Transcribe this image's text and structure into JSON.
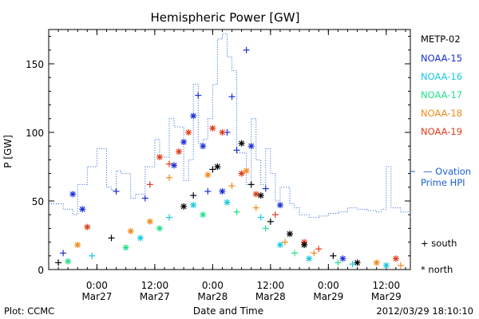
{
  "chart_data": {
    "type": "scatter",
    "title": "Hemispheric Power [GW]",
    "ylabel": "P [GW]",
    "xlabel": "Date and Time",
    "ylim": [
      0,
      175
    ],
    "yticks": [
      0,
      50,
      100,
      150
    ],
    "xlim": [
      "2012-03-26T14:00",
      "2012-03-29T17:00"
    ],
    "xticks": [
      {
        "t": "2012-03-27T00:00",
        "line1": "0:00",
        "line2": "Mar27"
      },
      {
        "t": "2012-03-27T12:00",
        "line1": "12:00",
        "line2": "Mar27"
      },
      {
        "t": "2012-03-28T00:00",
        "line1": "0:00",
        "line2": "Mar28"
      },
      {
        "t": "2012-03-28T12:00",
        "line1": "12:00",
        "line2": "Mar28"
      },
      {
        "t": "2012-03-29T00:00",
        "line1": "0:00",
        "line2": "Mar29"
      },
      {
        "t": "2012-03-29T12:00",
        "line1": "12:00",
        "line2": "Mar29"
      }
    ],
    "legend": {
      "satellites": [
        {
          "name": "METP-02",
          "color": "#000000"
        },
        {
          "name": "NOAA-15",
          "color": "#1a2fd6"
        },
        {
          "name": "NOAA-16",
          "color": "#18c8e0"
        },
        {
          "name": "NOAA-17",
          "color": "#22e08a"
        },
        {
          "name": "NOAA-18",
          "color": "#f08a1a"
        },
        {
          "name": "NOAA-19",
          "color": "#e03a1a"
        }
      ],
      "ovation_line1": "— Ovation",
      "ovation_line2": "Prime HPI",
      "ovation_color": "#1a5fd6",
      "marker_south": "+ south",
      "marker_north": "* north"
    },
    "ovation_series": [
      [
        "2012-03-26T14:00",
        48
      ],
      [
        "2012-03-26T17:00",
        44
      ],
      [
        "2012-03-26T19:00",
        40
      ],
      [
        "2012-03-26T20:00",
        62
      ],
      [
        "2012-03-26T22:00",
        75
      ],
      [
        "2012-03-27T00:00",
        88
      ],
      [
        "2012-03-27T02:00",
        60
      ],
      [
        "2012-03-27T03:00",
        58
      ],
      [
        "2012-03-27T04:00",
        72
      ],
      [
        "2012-03-27T05:00",
        70
      ],
      [
        "2012-03-27T07:00",
        52
      ],
      [
        "2012-03-27T08:00",
        55
      ],
      [
        "2012-03-27T10:00",
        75
      ],
      [
        "2012-03-27T12:00",
        95
      ],
      [
        "2012-03-27T13:00",
        82
      ],
      [
        "2012-03-27T15:00",
        110
      ],
      [
        "2012-03-27T16:00",
        104
      ],
      [
        "2012-03-27T18:00",
        65
      ],
      [
        "2012-03-27T19:00",
        80
      ],
      [
        "2012-03-27T20:00",
        135
      ],
      [
        "2012-03-27T21:00",
        92
      ],
      [
        "2012-03-27T22:00",
        95
      ],
      [
        "2012-03-27T23:00",
        110
      ],
      [
        "2012-03-28T00:00",
        135
      ],
      [
        "2012-03-28T01:00",
        168
      ],
      [
        "2012-03-28T02:00",
        172
      ],
      [
        "2012-03-28T03:00",
        155
      ],
      [
        "2012-03-28T04:00",
        145
      ],
      [
        "2012-03-28T05:00",
        85
      ],
      [
        "2012-03-28T07:00",
        62
      ],
      [
        "2012-03-28T08:00",
        110
      ],
      [
        "2012-03-28T09:00",
        80
      ],
      [
        "2012-03-28T10:00",
        62
      ],
      [
        "2012-03-28T11:00",
        88
      ],
      [
        "2012-03-28T12:00",
        70
      ],
      [
        "2012-03-28T13:00",
        50
      ],
      [
        "2012-03-28T14:00",
        60
      ],
      [
        "2012-03-28T16:00",
        48
      ],
      [
        "2012-03-28T17:00",
        45
      ],
      [
        "2012-03-28T18:00",
        40
      ],
      [
        "2012-03-28T20:00",
        38
      ],
      [
        "2012-03-28T22:00",
        39
      ],
      [
        "2012-03-29T00:00",
        41
      ],
      [
        "2012-03-29T02:00",
        42
      ],
      [
        "2012-03-29T04:00",
        45
      ],
      [
        "2012-03-29T06:00",
        44
      ],
      [
        "2012-03-29T08:00",
        43
      ],
      [
        "2012-03-29T10:00",
        42
      ],
      [
        "2012-03-29T11:00",
        44
      ],
      [
        "2012-03-29T12:00",
        75
      ],
      [
        "2012-03-29T13:00",
        45
      ],
      [
        "2012-03-29T15:00",
        42
      ],
      [
        "2012-03-29T17:00",
        38
      ]
    ],
    "points": [
      [
        "NOAA-15",
        "north",
        "2012-03-27T20:00",
        112
      ],
      [
        "NOAA-15",
        "south",
        "2012-03-27T21:00",
        127
      ],
      [
        "NOAA-15",
        "north",
        "2012-03-27T18:00",
        93
      ],
      [
        "NOAA-15",
        "south",
        "2012-03-28T03:00",
        100
      ],
      [
        "NOAA-15",
        "north",
        "2012-03-27T22:00",
        90
      ],
      [
        "NOAA-15",
        "south",
        "2012-03-28T07:00",
        160
      ],
      [
        "NOAA-15",
        "south",
        "2012-03-28T04:00",
        126
      ],
      [
        "NOAA-15",
        "north",
        "2012-03-28T08:00",
        90
      ],
      [
        "NOAA-15",
        "south",
        "2012-03-28T05:00",
        87
      ],
      [
        "NOAA-15",
        "north",
        "2012-03-27T16:00",
        76
      ],
      [
        "NOAA-15",
        "south",
        "2012-03-27T10:00",
        52
      ],
      [
        "NOAA-15",
        "north",
        "2012-03-26T19:00",
        55
      ],
      [
        "NOAA-15",
        "south",
        "2012-03-27T04:00",
        57
      ],
      [
        "NOAA-15",
        "north",
        "2012-03-26T21:00",
        44
      ],
      [
        "NOAA-15",
        "south",
        "2012-03-28T11:00",
        59
      ],
      [
        "NOAA-15",
        "north",
        "2012-03-28T14:00",
        47
      ],
      [
        "NOAA-15",
        "south",
        "2012-03-27T23:00",
        57
      ],
      [
        "NOAA-15",
        "north",
        "2012-03-28T02:00",
        57
      ],
      [
        "NOAA-15",
        "south",
        "2012-03-26T17:00",
        12
      ],
      [
        "NOAA-15",
        "north",
        "2012-03-29T03:00",
        8
      ],
      [
        "NOAA-19",
        "north",
        "2012-03-27T19:00",
        100
      ],
      [
        "NOAA-19",
        "north",
        "2012-03-27T17:00",
        86
      ],
      [
        "NOAA-19",
        "north",
        "2012-03-28T00:00",
        103
      ],
      [
        "NOAA-19",
        "north",
        "2012-03-28T02:00",
        100
      ],
      [
        "NOAA-19",
        "north",
        "2012-03-27T13:00",
        82
      ],
      [
        "NOAA-19",
        "south",
        "2012-03-27T15:00",
        77
      ],
      [
        "NOAA-19",
        "north",
        "2012-03-28T06:00",
        70
      ],
      [
        "NOAA-19",
        "south",
        "2012-03-27T11:00",
        62
      ],
      [
        "NOAA-19",
        "north",
        "2012-03-28T09:00",
        55
      ],
      [
        "NOAA-19",
        "north",
        "2012-03-26T22:00",
        31
      ],
      [
        "NOAA-19",
        "south",
        "2012-03-28T13:00",
        40
      ],
      [
        "NOAA-19",
        "north",
        "2012-03-28T19:00",
        20
      ],
      [
        "NOAA-19",
        "north",
        "2012-03-29T14:00",
        8
      ],
      [
        "NOAA-19",
        "south",
        "2012-03-28T22:00",
        15
      ],
      [
        "METP-02",
        "north",
        "2012-03-28T06:00",
        92
      ],
      [
        "METP-02",
        "south",
        "2012-03-28T00:00",
        73
      ],
      [
        "METP-02",
        "north",
        "2012-03-28T01:00",
        75
      ],
      [
        "METP-02",
        "south",
        "2012-03-28T08:00",
        62
      ],
      [
        "METP-02",
        "north",
        "2012-03-28T10:00",
        54
      ],
      [
        "METP-02",
        "south",
        "2012-03-27T20:00",
        54
      ],
      [
        "METP-02",
        "north",
        "2012-03-27T18:00",
        46
      ],
      [
        "METP-02",
        "south",
        "2012-03-28T12:00",
        35
      ],
      [
        "METP-02",
        "north",
        "2012-03-28T16:00",
        26
      ],
      [
        "METP-02",
        "south",
        "2012-03-27T03:00",
        23
      ],
      [
        "METP-02",
        "north",
        "2012-03-28T19:00",
        18
      ],
      [
        "METP-02",
        "south",
        "2012-03-29T01:00",
        10
      ],
      [
        "METP-02",
        "north",
        "2012-03-29T06:00",
        5
      ],
      [
        "METP-02",
        "south",
        "2012-03-26T16:00",
        5
      ],
      [
        "NOAA-18",
        "north",
        "2012-03-28T07:00",
        72
      ],
      [
        "NOAA-18",
        "south",
        "2012-03-27T15:00",
        67
      ],
      [
        "NOAA-18",
        "north",
        "2012-03-27T23:00",
        69
      ],
      [
        "NOAA-18",
        "south",
        "2012-03-28T04:00",
        61
      ],
      [
        "NOAA-18",
        "north",
        "2012-03-27T11:00",
        35
      ],
      [
        "NOAA-18",
        "south",
        "2012-03-28T09:00",
        45
      ],
      [
        "NOAA-18",
        "north",
        "2012-03-27T07:00",
        28
      ],
      [
        "NOAA-18",
        "south",
        "2012-03-28T15:00",
        20
      ],
      [
        "NOAA-18",
        "north",
        "2012-03-26T20:00",
        18
      ],
      [
        "NOAA-18",
        "south",
        "2012-03-28T21:00",
        12
      ],
      [
        "NOAA-18",
        "north",
        "2012-03-29T10:00",
        5
      ],
      [
        "NOAA-18",
        "south",
        "2012-03-29T15:00",
        3
      ],
      [
        "NOAA-16",
        "north",
        "2012-03-27T20:00",
        47
      ],
      [
        "NOAA-16",
        "north",
        "2012-03-28T03:00",
        49
      ],
      [
        "NOAA-16",
        "south",
        "2012-03-27T15:00",
        38
      ],
      [
        "NOAA-16",
        "north",
        "2012-03-27T09:00",
        23
      ],
      [
        "NOAA-16",
        "south",
        "2012-03-28T10:00",
        38
      ],
      [
        "NOAA-16",
        "north",
        "2012-03-28T14:00",
        18
      ],
      [
        "NOAA-16",
        "south",
        "2012-03-26T23:00",
        10
      ],
      [
        "NOAA-16",
        "north",
        "2012-03-28T20:00",
        8
      ],
      [
        "NOAA-16",
        "south",
        "2012-03-29T05:00",
        4
      ],
      [
        "NOAA-16",
        "north",
        "2012-03-29T12:00",
        3
      ],
      [
        "NOAA-17",
        "north",
        "2012-03-27T22:00",
        40
      ],
      [
        "NOAA-17",
        "south",
        "2012-03-28T05:00",
        42
      ],
      [
        "NOAA-17",
        "north",
        "2012-03-27T13:00",
        30
      ],
      [
        "NOAA-17",
        "south",
        "2012-03-28T11:00",
        30
      ],
      [
        "NOAA-17",
        "north",
        "2012-03-27T06:00",
        16
      ],
      [
        "NOAA-17",
        "south",
        "2012-03-28T17:00",
        12
      ],
      [
        "NOAA-17",
        "north",
        "2012-03-26T18:00",
        6
      ],
      [
        "NOAA-17",
        "south",
        "2012-03-29T02:00",
        5
      ]
    ]
  },
  "footer": {
    "left": "Plot: CCMC",
    "right": "2012/03/29 18:10:10"
  }
}
